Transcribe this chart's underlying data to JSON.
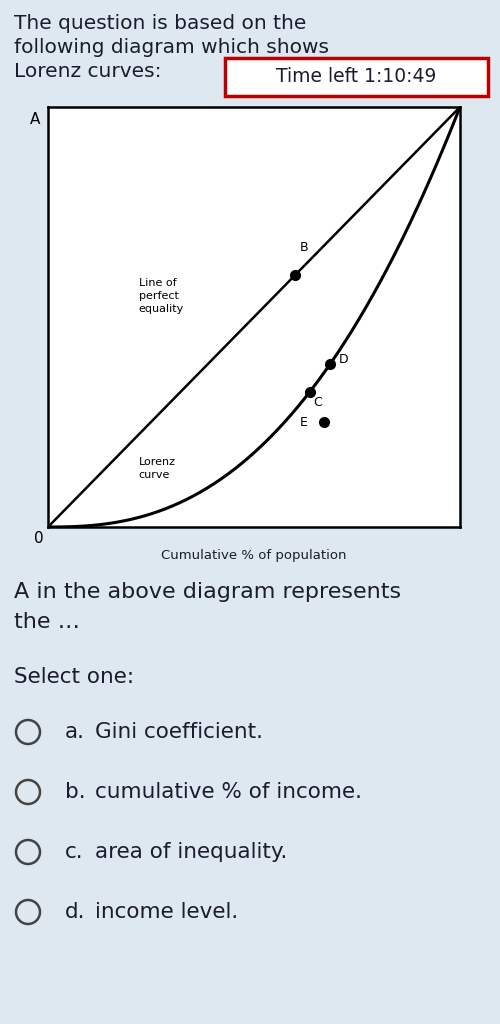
{
  "bg_color": "#dde8f0",
  "header_line1": "The question is based on the",
  "header_line2": "following diagram which shows",
  "header_line3": "Lorenz curves:",
  "timer_text": "Time left 1:10:49",
  "timer_border_color": "#bb0000",
  "diagram_bg": "#ffffff",
  "xlabel": "Cumulative % of population",
  "label_A": "A",
  "label_0": "0",
  "line_of_equality_label": "Line of\nperfect\nequality",
  "lorenz_label": "Lorenz\ncurve",
  "question_line1": "A in the above diagram represents",
  "question_line2": "the …",
  "select_text": "Select one:",
  "options": [
    {
      "label": "a.",
      "text": "Gini coefficient."
    },
    {
      "label": "b.",
      "text": "cumulative % of income."
    },
    {
      "label": "c.",
      "text": "area of inequality."
    },
    {
      "label": "d.",
      "text": "income level."
    }
  ],
  "header_fontsize": 14.5,
  "timer_fontsize": 13.5,
  "question_fontsize": 16,
  "option_fontsize": 15.5,
  "select_fontsize": 15.5,
  "diag_label_fontsize": 8,
  "point_label_fontsize": 9
}
